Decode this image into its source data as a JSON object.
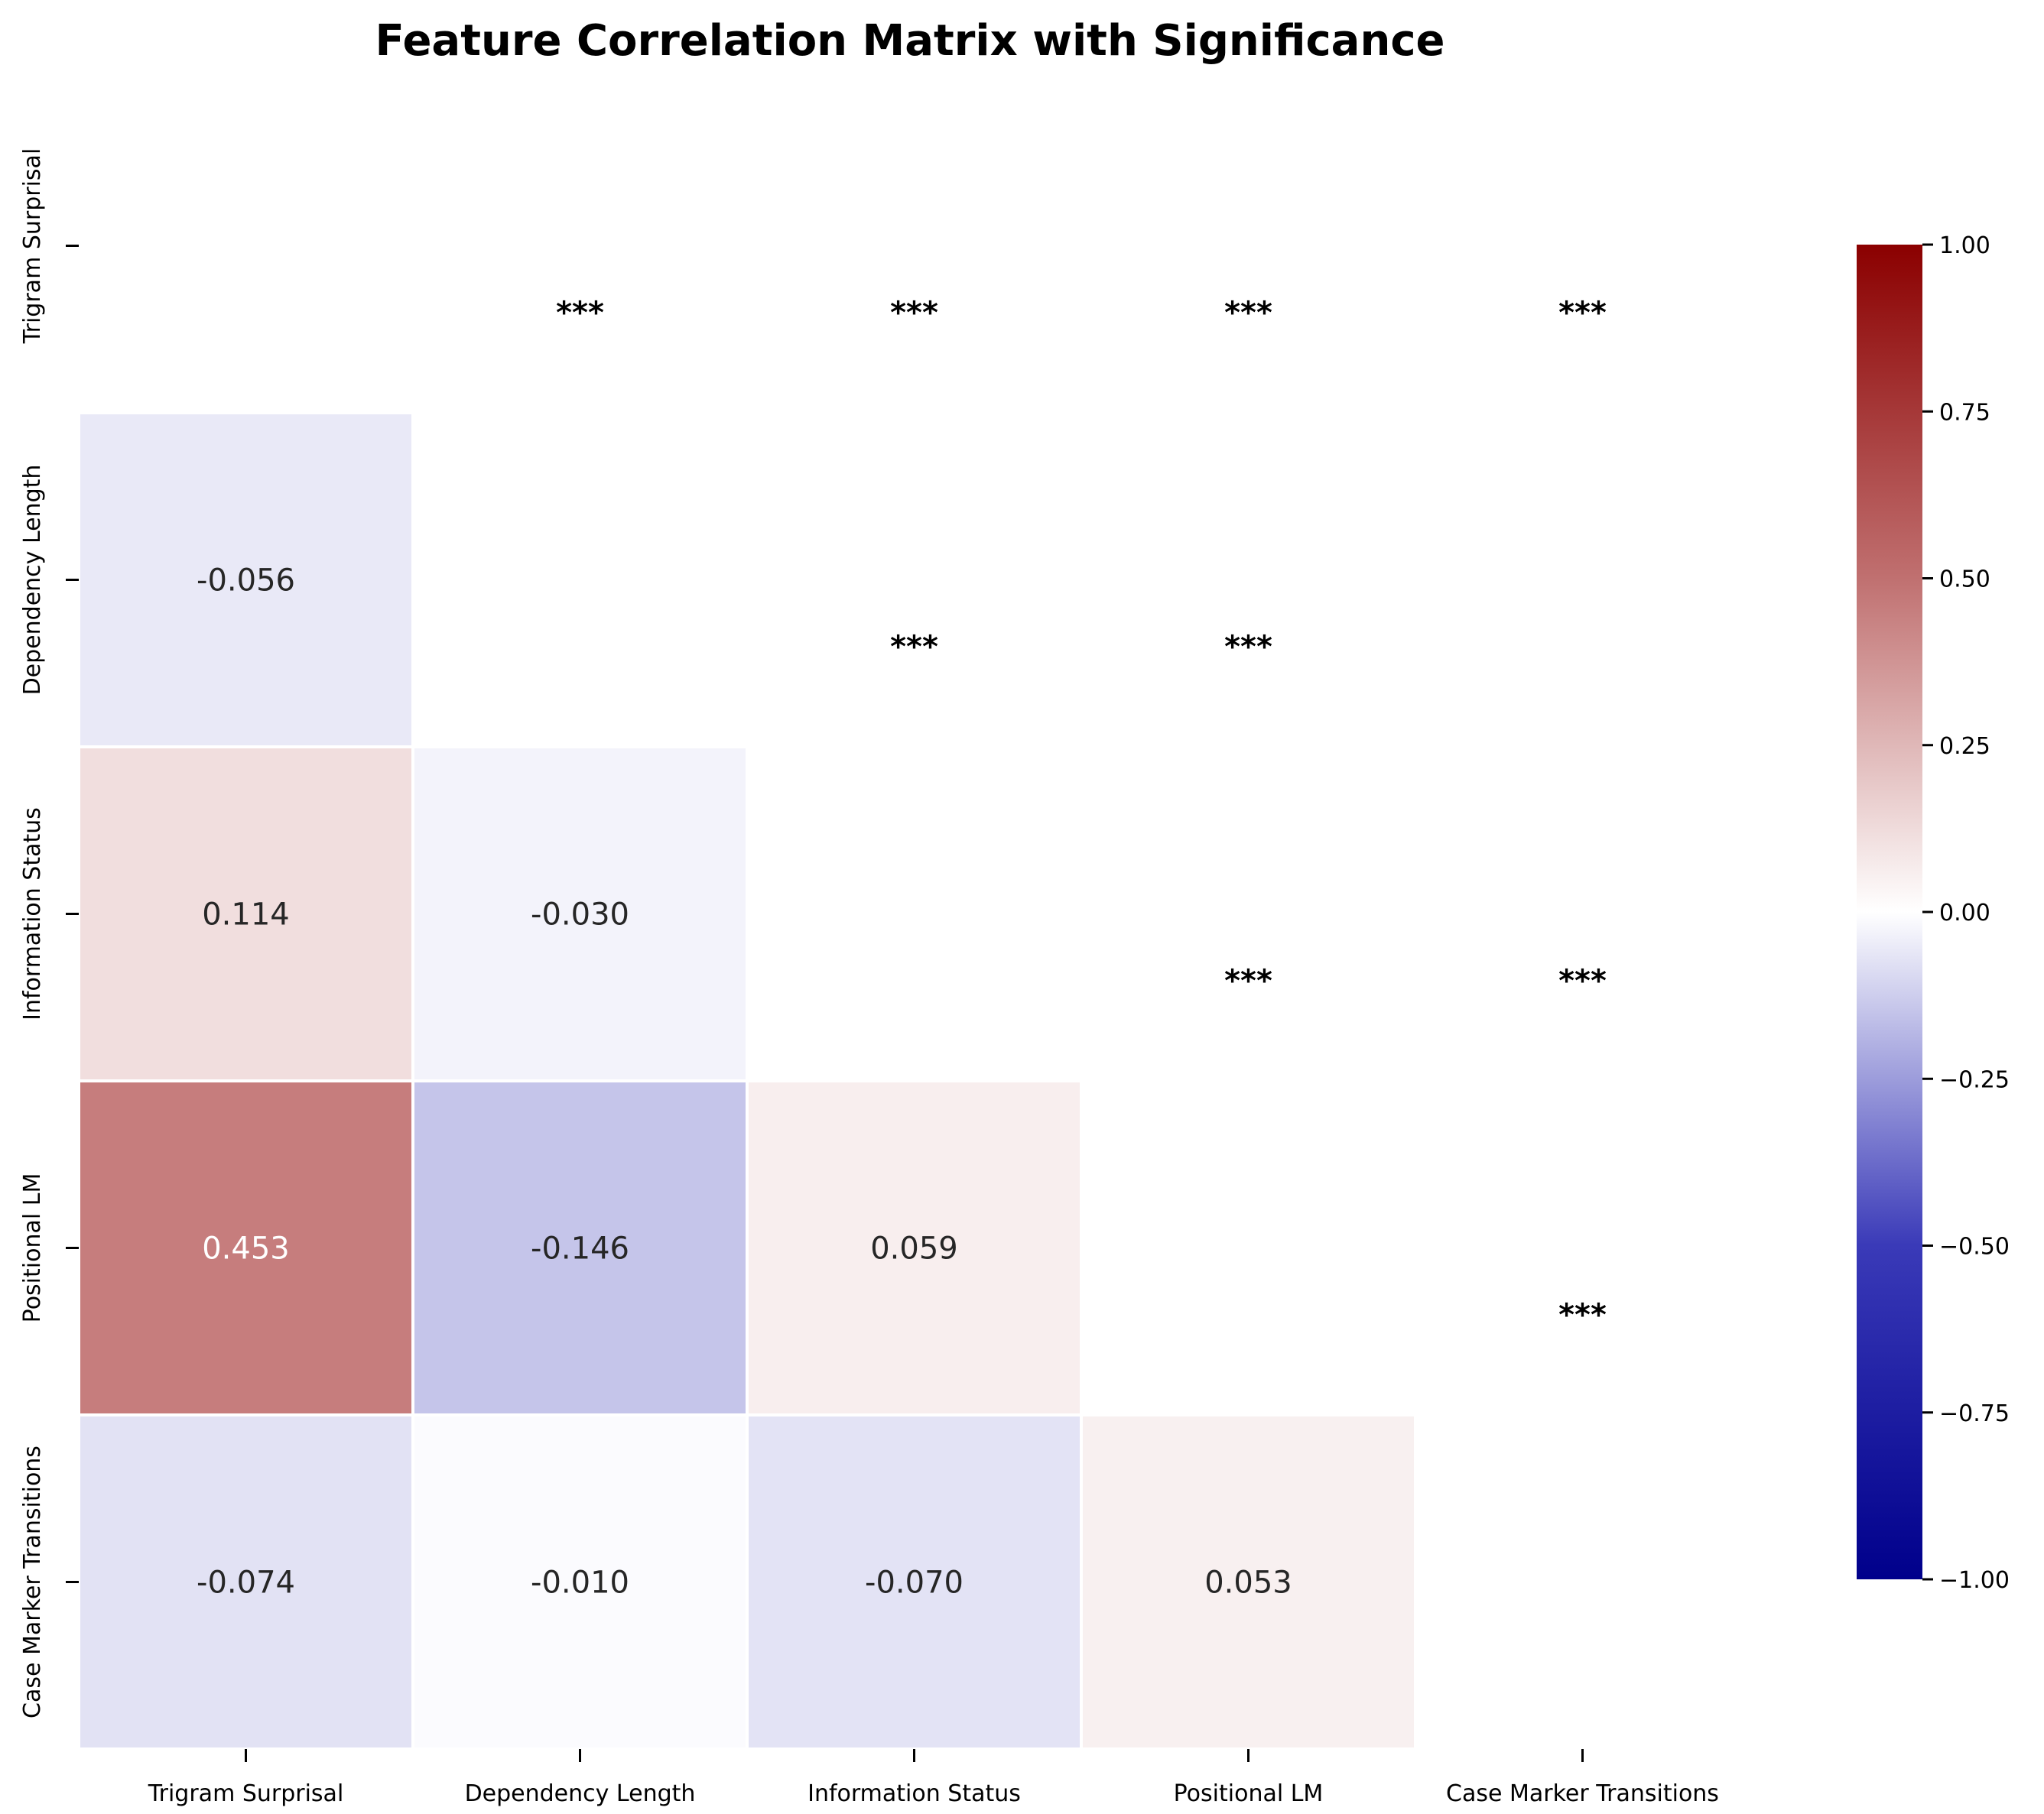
{
  "chart_data": {
    "type": "heatmap",
    "title": "Feature Correlation Matrix with Significance",
    "xlabel": "",
    "ylabel": "",
    "features": [
      "Trigram Surprisal",
      "Dependency Length",
      "Information Status",
      "Positional LM",
      "Case Marker Transitions"
    ],
    "matrix": [
      [
        null,
        null,
        null,
        null,
        null
      ],
      [
        -0.056,
        null,
        null,
        null,
        null
      ],
      [
        0.114,
        -0.03,
        null,
        null,
        null
      ],
      [
        0.453,
        -0.146,
        0.059,
        null,
        null
      ],
      [
        -0.074,
        -0.01,
        -0.07,
        0.053,
        null
      ]
    ],
    "significance": [
      [
        null,
        "***",
        "***",
        "***",
        "***"
      ],
      [
        null,
        null,
        "***",
        "***",
        null
      ],
      [
        null,
        null,
        null,
        "***",
        "***"
      ],
      [
        null,
        null,
        null,
        null,
        "***"
      ],
      [
        null,
        null,
        null,
        null,
        null
      ]
    ],
    "colorbar": {
      "vmin": -1.0,
      "vmax": 1.0,
      "colormap": "seismic",
      "low_color": "#00008b",
      "mid_color": "#ffffff",
      "high_color": "#8b0000",
      "ticks": [
        "1.00",
        "0.75",
        "0.50",
        "0.25",
        "0.00",
        "−0.25",
        "−0.50",
        "−0.75",
        "−1.00"
      ]
    },
    "grid": false,
    "legend": "colorbar-right"
  }
}
